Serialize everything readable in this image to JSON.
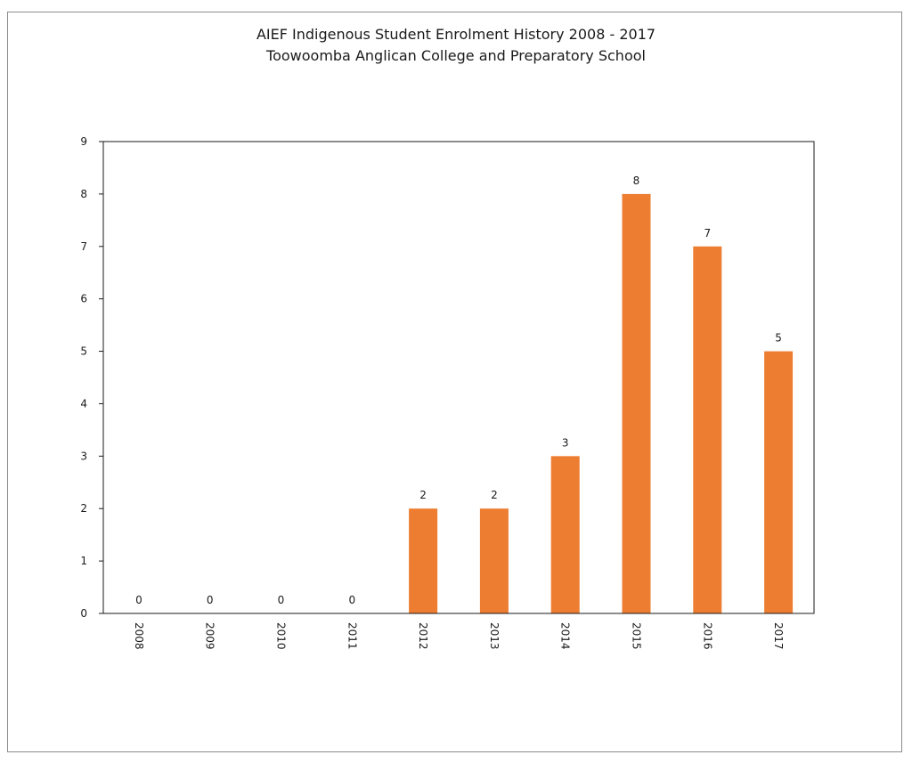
{
  "chart_data": {
    "type": "bar",
    "title": "AIEF Indigenous Student Enrolment History 2008 - 2017",
    "subtitle": "Toowoomba Anglican College and Preparatory School",
    "xlabel": "",
    "ylabel": "",
    "categories": [
      "2008",
      "2009",
      "2010",
      "2011",
      "2012",
      "2013",
      "2014",
      "2015",
      "2016",
      "2017"
    ],
    "values": [
      0,
      0,
      0,
      0,
      2,
      2,
      3,
      8,
      7,
      5
    ],
    "ylim": [
      0,
      9
    ],
    "yticks": [
      0,
      1,
      2,
      3,
      4,
      5,
      6,
      7,
      8,
      9
    ],
    "grid": false,
    "legend": "none",
    "bar_color": "#ED7D31",
    "data_labels": true
  }
}
